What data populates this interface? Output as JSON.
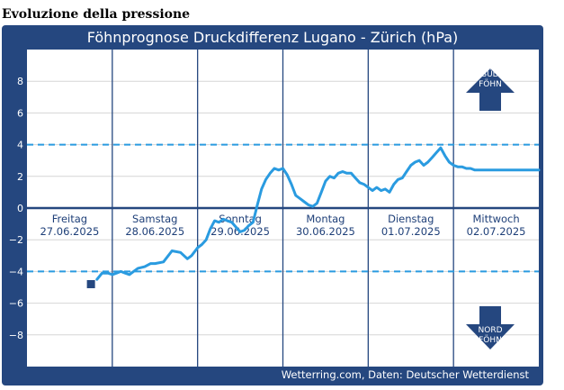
{
  "page": {
    "heading": "Evoluzione della pressione"
  },
  "colors": {
    "frame": "#25477f",
    "plot_bg": "#ffffff",
    "line": "#2a9be0",
    "threshold": "#2a9be0",
    "zero_line": "#25477f",
    "day_label": "#1e3f78",
    "arrow_fill": "#25477f"
  },
  "arrows": {
    "up": {
      "line1": "SÜD",
      "line2": "FÖHN",
      "icon": "arrow-up-icon"
    },
    "down": {
      "line1": "NORD",
      "line2": "FÖHN",
      "icon": "arrow-down-icon"
    }
  },
  "chart_data": {
    "type": "line",
    "title": "Föhnprognose Druckdifferenz Lugano - Zürich (hPa)",
    "credit": "Wetterring.com, Daten: Deutscher Wetterdienst",
    "xlabel": "",
    "ylabel": "",
    "ylim": [
      -10,
      10
    ],
    "xlim": [
      0,
      6
    ],
    "yticks": [
      8,
      6,
      4,
      2,
      0,
      -2,
      -4,
      -6,
      -8
    ],
    "ytick_labels": [
      "8",
      "6",
      "4",
      "2",
      "0",
      "−2",
      "−4",
      "−6",
      "−8"
    ],
    "threshold_lines": [
      4,
      -4
    ],
    "grid": true,
    "days": [
      {
        "name": "Freitag",
        "date": "27.06.2025"
      },
      {
        "name": "Samstag",
        "date": "28.06.2025"
      },
      {
        "name": "Sonntag",
        "date": "29.06.2025"
      },
      {
        "name": "Montag",
        "date": "30.06.2025"
      },
      {
        "name": "Dienstag",
        "date": "01.07.2025"
      },
      {
        "name": "Mittwoch",
        "date": "02.07.2025"
      }
    ],
    "marker": {
      "x": 0.75,
      "y": -4.8
    },
    "series": [
      {
        "x": [
          0.82,
          0.88,
          0.95,
          1.0,
          1.05,
          1.1,
          1.15,
          1.2,
          1.25,
          1.3,
          1.38,
          1.45,
          1.5,
          1.6,
          1.7,
          1.8,
          1.88,
          1.93,
          2.0,
          2.05,
          2.1,
          2.15,
          2.2,
          2.25,
          2.3,
          2.35,
          2.4,
          2.45,
          2.5,
          2.55,
          2.6,
          2.65,
          2.7,
          2.75,
          2.8,
          2.85,
          2.9,
          2.95,
          3.0,
          3.05,
          3.1,
          3.15,
          3.2,
          3.25,
          3.3,
          3.35,
          3.4,
          3.45,
          3.5,
          3.55,
          3.6,
          3.65,
          3.7,
          3.75,
          3.8,
          3.85,
          3.9,
          3.95,
          4.0,
          4.05,
          4.1,
          4.15,
          4.2,
          4.25,
          4.3,
          4.35,
          4.4,
          4.45,
          4.5,
          4.55,
          4.6,
          4.65,
          4.7,
          4.75,
          4.8,
          4.85,
          4.9,
          4.95,
          5.0,
          5.05,
          5.1,
          5.15,
          5.2,
          5.25,
          5.3,
          5.35,
          5.4,
          5.45,
          5.5,
          5.55,
          5.6,
          5.65,
          5.7,
          5.75,
          5.8,
          5.85,
          5.9,
          5.95,
          6.0
        ],
        "y": [
          -4.5,
          -4.1,
          -4.1,
          -4.2,
          -4.1,
          -4.0,
          -4.1,
          -4.2,
          -4.0,
          -3.8,
          -3.7,
          -3.5,
          -3.5,
          -3.4,
          -2.7,
          -2.8,
          -3.2,
          -3.0,
          -2.5,
          -2.3,
          -2.0,
          -1.3,
          -0.8,
          -0.9,
          -0.7,
          -0.8,
          -0.9,
          -1.2,
          -1.5,
          -1.4,
          -1.1,
          -0.9,
          0.2,
          1.2,
          1.8,
          2.2,
          2.5,
          2.4,
          2.5,
          2.1,
          1.5,
          0.8,
          0.6,
          0.4,
          0.2,
          0.1,
          0.3,
          1.0,
          1.7,
          2.0,
          1.9,
          2.2,
          2.3,
          2.2,
          2.2,
          1.9,
          1.6,
          1.5,
          1.3,
          1.1,
          1.3,
          1.1,
          1.2,
          1.0,
          1.5,
          1.8,
          1.9,
          2.3,
          2.7,
          2.9,
          3.0,
          2.7,
          2.9,
          3.2,
          3.5,
          3.8,
          3.3,
          2.9,
          2.7,
          2.6,
          2.6,
          2.5,
          2.5,
          2.4,
          2.4,
          2.4,
          2.4,
          2.4,
          2.4,
          2.4,
          2.4,
          2.4,
          2.4,
          2.4,
          2.4,
          2.4,
          2.4,
          2.4,
          2.4
        ]
      }
    ]
  }
}
